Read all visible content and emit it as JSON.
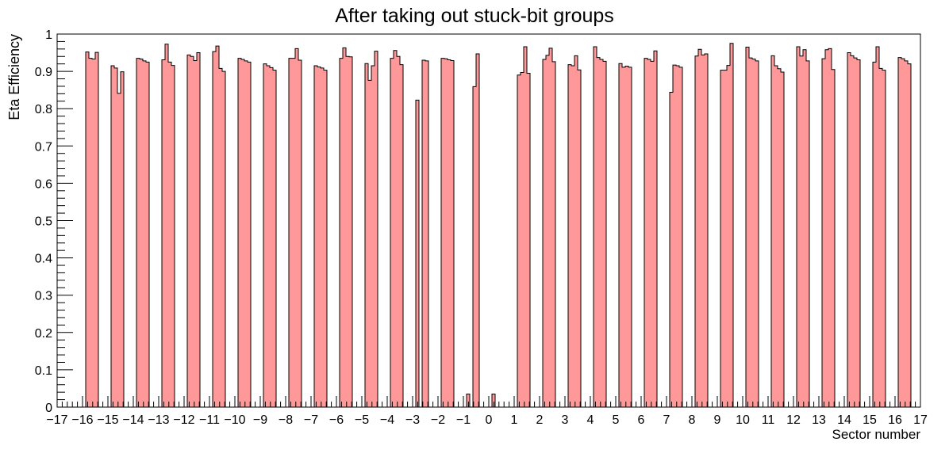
{
  "chart_data": {
    "type": "bar",
    "histogram": true,
    "title": "After taking out stuck-bit groups",
    "xlabel": "Sector number",
    "ylabel": "Eta Efficiency",
    "xlim": [
      -17,
      17
    ],
    "ylim": [
      0,
      1
    ],
    "grid": false,
    "bar_color": "#ff9999",
    "edge_color": "#000000",
    "bins_per_sector": 8,
    "y_ticks": [
      {
        "value": 0,
        "label": "0"
      },
      {
        "value": 0.1,
        "label": "0.1"
      },
      {
        "value": 0.2,
        "label": "0.2"
      },
      {
        "value": 0.3,
        "label": "0.3"
      },
      {
        "value": 0.4,
        "label": "0.4"
      },
      {
        "value": 0.5,
        "label": "0.5"
      },
      {
        "value": 0.6,
        "label": "0.6"
      },
      {
        "value": 0.7,
        "label": "0.7"
      },
      {
        "value": 0.8,
        "label": "0.8"
      },
      {
        "value": 0.9,
        "label": "0.9"
      },
      {
        "value": 1,
        "label": "1"
      }
    ],
    "x_ticks": [
      {
        "value": -17,
        "label": "−17"
      },
      {
        "value": -16,
        "label": "−16"
      },
      {
        "value": -15,
        "label": "−15"
      },
      {
        "value": -14,
        "label": "−14"
      },
      {
        "value": -13,
        "label": "−13"
      },
      {
        "value": -12,
        "label": "−12"
      },
      {
        "value": -11,
        "label": "−11"
      },
      {
        "value": -10,
        "label": "−10"
      },
      {
        "value": -9,
        "label": "−9"
      },
      {
        "value": -8,
        "label": "−8"
      },
      {
        "value": -7,
        "label": "−7"
      },
      {
        "value": -6,
        "label": "−6"
      },
      {
        "value": -5,
        "label": "−5"
      },
      {
        "value": -4,
        "label": "−4"
      },
      {
        "value": -3,
        "label": "−3"
      },
      {
        "value": -2,
        "label": "−2"
      },
      {
        "value": -1,
        "label": "−1"
      },
      {
        "value": 0,
        "label": "0"
      },
      {
        "value": 1,
        "label": "1"
      },
      {
        "value": 2,
        "label": "2"
      },
      {
        "value": 3,
        "label": "3"
      },
      {
        "value": 4,
        "label": "4"
      },
      {
        "value": 5,
        "label": "5"
      },
      {
        "value": 6,
        "label": "6"
      },
      {
        "value": 7,
        "label": "7"
      },
      {
        "value": 8,
        "label": "8"
      },
      {
        "value": 9,
        "label": "9"
      },
      {
        "value": 10,
        "label": "10"
      },
      {
        "value": 11,
        "label": "11"
      },
      {
        "value": 12,
        "label": "12"
      },
      {
        "value": 13,
        "label": "13"
      },
      {
        "value": 14,
        "label": "14"
      },
      {
        "value": 15,
        "label": "15"
      },
      {
        "value": 16,
        "label": "16"
      },
      {
        "value": 17,
        "label": "17"
      }
    ],
    "sectors": [
      {
        "sector": -16,
        "values": [
          0,
          0.952,
          0.935,
          0.933,
          0.951,
          0,
          0,
          0
        ]
      },
      {
        "sector": -15,
        "values": [
          0,
          0.915,
          0.909,
          0.841,
          0.899,
          0,
          0,
          0
        ]
      },
      {
        "sector": -14,
        "values": [
          0,
          0.935,
          0.933,
          0.928,
          0.925,
          0,
          0,
          0
        ]
      },
      {
        "sector": -13,
        "values": [
          0,
          0.931,
          0.973,
          0.925,
          0.916,
          0,
          0,
          0
        ]
      },
      {
        "sector": -12,
        "values": [
          0,
          0.944,
          0.94,
          0.929,
          0.95,
          0,
          0,
          0
        ]
      },
      {
        "sector": -11,
        "values": [
          0,
          0.953,
          0.968,
          0.908,
          0.9,
          0,
          0,
          0
        ]
      },
      {
        "sector": -10,
        "values": [
          0,
          0.935,
          0.932,
          0.928,
          0.925,
          0,
          0,
          0
        ]
      },
      {
        "sector": -9,
        "values": [
          0,
          0.92,
          0.915,
          0.91,
          0.903,
          0,
          0,
          0
        ]
      },
      {
        "sector": -8,
        "values": [
          0,
          0.935,
          0.935,
          0.961,
          0.93,
          0,
          0,
          0
        ]
      },
      {
        "sector": -7,
        "values": [
          0,
          0.915,
          0.912,
          0.909,
          0.903,
          0,
          0,
          0
        ]
      },
      {
        "sector": -6,
        "values": [
          0,
          0.935,
          0.963,
          0.94,
          0.939,
          0,
          0,
          0
        ]
      },
      {
        "sector": -5,
        "values": [
          0,
          0.921,
          0.876,
          0.915,
          0.954,
          0,
          0,
          0
        ]
      },
      {
        "sector": -4,
        "values": [
          0,
          0.935,
          0.956,
          0.94,
          0.918,
          0,
          0,
          0
        ]
      },
      {
        "sector": -3,
        "values": [
          0,
          0.823,
          0,
          0.93,
          0.928,
          0,
          0,
          0
        ]
      },
      {
        "sector": -2,
        "values": [
          0,
          0.935,
          0.934,
          0.931,
          0.929,
          0,
          0,
          0
        ]
      },
      {
        "sector": -1,
        "values": [
          0,
          0.035,
          0,
          0.859,
          0.947,
          0,
          0,
          0
        ]
      },
      {
        "sector": 0,
        "values": [
          0,
          0.035,
          0,
          0,
          0,
          0,
          0,
          0
        ]
      },
      {
        "sector": 1,
        "values": [
          0,
          0.89,
          0.897,
          0.966,
          0.895,
          0,
          0,
          0
        ]
      },
      {
        "sector": 2,
        "values": [
          0,
          0.932,
          0.943,
          0.962,
          0.926,
          0,
          0,
          0
        ]
      },
      {
        "sector": 3,
        "values": [
          0,
          0.918,
          0.915,
          0.942,
          0.904,
          0,
          0,
          0
        ]
      },
      {
        "sector": 4,
        "values": [
          0,
          0.966,
          0.937,
          0.932,
          0.927,
          0,
          0,
          0
        ]
      },
      {
        "sector": 5,
        "values": [
          0,
          0.921,
          0.911,
          0.914,
          0.911,
          0,
          0,
          0
        ]
      },
      {
        "sector": 6,
        "values": [
          0,
          0.935,
          0.932,
          0.927,
          0.955,
          0,
          0,
          0
        ]
      },
      {
        "sector": 7,
        "values": [
          0,
          0.844,
          0.917,
          0.915,
          0.911,
          0,
          0,
          0
        ]
      },
      {
        "sector": 8,
        "values": [
          0,
          0.941,
          0.959,
          0.944,
          0.947,
          0,
          0,
          0
        ]
      },
      {
        "sector": 9,
        "values": [
          0,
          0.903,
          0.903,
          0.916,
          0.975,
          0,
          0,
          0
        ]
      },
      {
        "sector": 10,
        "values": [
          0,
          0.965,
          0.936,
          0.933,
          0.928,
          0,
          0,
          0
        ]
      },
      {
        "sector": 11,
        "values": [
          0,
          0.942,
          0.915,
          0.907,
          0.898,
          0,
          0,
          0
        ]
      },
      {
        "sector": 12,
        "values": [
          0,
          0.966,
          0.941,
          0.958,
          0.928,
          0,
          0,
          0
        ]
      },
      {
        "sector": 13,
        "values": [
          0,
          0.934,
          0.958,
          0.961,
          0.905,
          0,
          0,
          0
        ]
      },
      {
        "sector": 14,
        "values": [
          0,
          0.95,
          0.942,
          0.936,
          0.931,
          0,
          0,
          0
        ]
      },
      {
        "sector": 15,
        "values": [
          0,
          0.925,
          0.966,
          0.908,
          0.903,
          0,
          0,
          0
        ]
      },
      {
        "sector": 16,
        "values": [
          0,
          0.937,
          0.934,
          0.928,
          0.92,
          0,
          0,
          0
        ]
      }
    ]
  }
}
